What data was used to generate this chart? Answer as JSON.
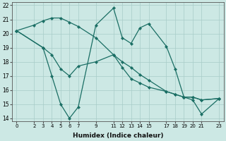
{
  "xlabel": "Humidex (Indice chaleur)",
  "bg_color": "#cce8e4",
  "line_color": "#1a6e64",
  "xlim": [
    -0.5,
    23.5
  ],
  "ylim": [
    13.8,
    22.2
  ],
  "yticks": [
    14,
    15,
    16,
    17,
    18,
    19,
    20,
    21,
    22
  ],
  "xticks": [
    0,
    2,
    3,
    4,
    5,
    6,
    7,
    9,
    11,
    12,
    13,
    14,
    15,
    17,
    18,
    19,
    20,
    21,
    23
  ],
  "series": [
    {
      "x": [
        0,
        2,
        3,
        4,
        5,
        6,
        7,
        9,
        11,
        12,
        13,
        14,
        15,
        17,
        18,
        19,
        20,
        21,
        23
      ],
      "y": [
        20.2,
        20.6,
        20.9,
        21.1,
        21.1,
        20.8,
        20.5,
        19.7,
        18.5,
        18.0,
        17.6,
        17.1,
        16.7,
        15.9,
        15.7,
        15.5,
        15.5,
        15.3,
        15.4
      ]
    },
    {
      "x": [
        0,
        3,
        4,
        5,
        6,
        7,
        9,
        11,
        12,
        13,
        14,
        15,
        17,
        18,
        19,
        20,
        21,
        23
      ],
      "y": [
        20.2,
        19.0,
        17.0,
        15.0,
        14.0,
        14.8,
        20.6,
        21.8,
        19.7,
        19.3,
        20.4,
        20.7,
        19.1,
        17.5,
        15.5,
        15.3,
        14.3,
        15.4
      ]
    },
    {
      "x": [
        0,
        3,
        4,
        5,
        6,
        7,
        9,
        11,
        12,
        13,
        14,
        15,
        17,
        18,
        19,
        20,
        21,
        23
      ],
      "y": [
        20.2,
        19.0,
        18.5,
        17.5,
        17.0,
        17.7,
        18.0,
        18.5,
        17.6,
        16.8,
        16.5,
        16.2,
        15.9,
        15.7,
        15.5,
        15.5,
        15.3,
        15.4
      ]
    }
  ]
}
